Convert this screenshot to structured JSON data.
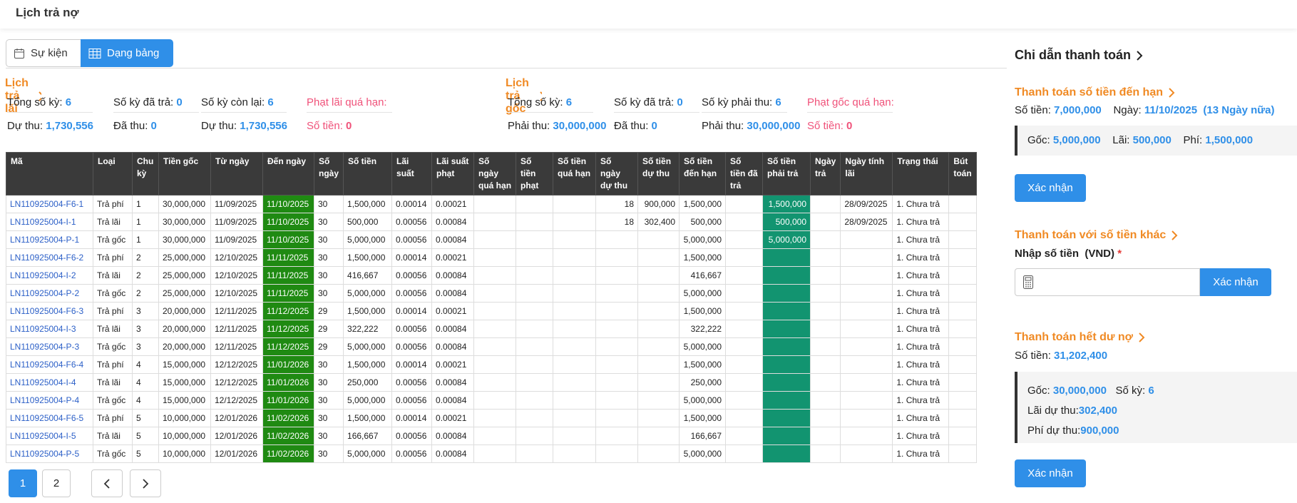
{
  "header": {
    "title": "Lịch trả nợ"
  },
  "tabs": [
    "Sự kiện",
    "Dạng bảng"
  ],
  "interest_schedule": {
    "title": "Lịch trả lãi",
    "stats": [
      [
        {
          "label": "Tổng số kỳ:",
          "value": "6"
        },
        {
          "label": "Số kỳ đã trả:",
          "value": "0"
        },
        {
          "label": "Số kỳ còn lại:",
          "value": "6"
        },
        {
          "label": "Phạt lãi quá hạn:"
        }
      ],
      [
        {
          "label": "Dự thu:",
          "value": "1,730,556"
        },
        {
          "label": "Đã thu:",
          "value": "0"
        },
        {
          "label": "Dự thu:",
          "value": "1,730,556"
        },
        {
          "label": "Số tiền:",
          "value": "0"
        }
      ]
    ]
  },
  "principal_schedule": {
    "title": "Lịch trả gốc",
    "stats": [
      [
        {
          "label": "Tổng số kỳ:",
          "value": "6"
        },
        {
          "label": "Số kỳ đã trả:",
          "value": "0"
        },
        {
          "label": "Số kỳ phải thu:",
          "value": "6"
        },
        {
          "label": "Phạt gốc quá hạn:"
        }
      ],
      [
        {
          "label": "Phải thu:",
          "value": "30,000,000"
        },
        {
          "label": "Đã thu:",
          "value": "0"
        },
        {
          "label": "Phải thu:",
          "value": "30,000,000"
        },
        {
          "label": "Số tiền:",
          "value": "0"
        }
      ]
    ]
  },
  "table": {
    "headers": [
      "Mã",
      "Loại",
      "Chu kỳ",
      "Tiền gốc",
      "Từ ngày",
      "Đến ngày",
      "Số ngày",
      "Số tiền",
      "Lãi suất",
      "Lãi suất phạt",
      "Số ngày quá hạn",
      "Số tiền phạt",
      "Số tiền quá hạn",
      "Số ngày dự thu",
      "Số tiền dự thu",
      "Số tiền đến hạn",
      "Số tiền đã trả",
      "Số tiền phải trả",
      "Ngày trả",
      "Ngày tính lãi",
      "Trạng thái",
      "Bút toán"
    ],
    "rows": [
      [
        "LN110925004-F6-1",
        "Trả phí",
        "1",
        "30,000,000",
        "11/09/2025",
        "11/10/2025",
        "30",
        "1,500,000",
        "0.00014",
        "0.00021",
        null,
        null,
        null,
        "18",
        "900,000",
        "1,500,000",
        null,
        "1,500,000",
        null,
        "28/09/2025",
        "1. Chưa trả",
        null
      ],
      [
        "LN110925004-I-1",
        "Trả lãi",
        "1",
        "30,000,000",
        "11/09/2025",
        "11/10/2025",
        "30",
        "500,000",
        "0.00056",
        "0.00084",
        null,
        null,
        null,
        "18",
        "302,400",
        "500,000",
        null,
        "500,000",
        null,
        "28/09/2025",
        "1. Chưa trả",
        null
      ],
      [
        "LN110925004-P-1",
        "Trả gốc",
        "1",
        "30,000,000",
        "11/09/2025",
        "11/10/2025",
        "30",
        "5,000,000",
        "0.00056",
        "0.00084",
        null,
        null,
        null,
        null,
        null,
        "5,000,000",
        null,
        "5,000,000",
        null,
        null,
        "1. Chưa trả",
        null
      ],
      [
        "LN110925004-F6-2",
        "Trả phí",
        "2",
        "25,000,000",
        "12/10/2025",
        "11/11/2025",
        "30",
        "1,500,000",
        "0.00014",
        "0.00021",
        null,
        null,
        null,
        null,
        null,
        "1,500,000",
        null,
        null,
        null,
        null,
        "1. Chưa trả",
        null
      ],
      [
        "LN110925004-I-2",
        "Trả lãi",
        "2",
        "25,000,000",
        "12/10/2025",
        "11/11/2025",
        "30",
        "416,667",
        "0.00056",
        "0.00084",
        null,
        null,
        null,
        null,
        null,
        "416,667",
        null,
        null,
        null,
        null,
        "1. Chưa trả",
        null
      ],
      [
        "LN110925004-P-2",
        "Trả gốc",
        "2",
        "25,000,000",
        "12/10/2025",
        "11/11/2025",
        "30",
        "5,000,000",
        "0.00056",
        "0.00084",
        null,
        null,
        null,
        null,
        null,
        "5,000,000",
        null,
        null,
        null,
        null,
        "1. Chưa trả",
        null
      ],
      [
        "LN110925004-F6-3",
        "Trả phí",
        "3",
        "20,000,000",
        "12/11/2025",
        "11/12/2025",
        "29",
        "1,500,000",
        "0.00014",
        "0.00021",
        null,
        null,
        null,
        null,
        null,
        "1,500,000",
        null,
        null,
        null,
        null,
        "1. Chưa trả",
        null
      ],
      [
        "LN110925004-I-3",
        "Trả lãi",
        "3",
        "20,000,000",
        "12/11/2025",
        "11/12/2025",
        "29",
        "322,222",
        "0.00056",
        "0.00084",
        null,
        null,
        null,
        null,
        null,
        "322,222",
        null,
        null,
        null,
        null,
        "1. Chưa trả",
        null
      ],
      [
        "LN110925004-P-3",
        "Trả gốc",
        "3",
        "20,000,000",
        "12/11/2025",
        "11/12/2025",
        "29",
        "5,000,000",
        "0.00056",
        "0.00084",
        null,
        null,
        null,
        null,
        null,
        "5,000,000",
        null,
        null,
        null,
        null,
        "1. Chưa trả",
        null
      ],
      [
        "LN110925004-F6-4",
        "Trả phí",
        "4",
        "15,000,000",
        "12/12/2025",
        "11/01/2026",
        "30",
        "1,500,000",
        "0.00014",
        "0.00021",
        null,
        null,
        null,
        null,
        null,
        "1,500,000",
        null,
        null,
        null,
        null,
        "1. Chưa trả",
        null
      ],
      [
        "LN110925004-I-4",
        "Trả lãi",
        "4",
        "15,000,000",
        "12/12/2025",
        "11/01/2026",
        "30",
        "250,000",
        "0.00056",
        "0.00084",
        null,
        null,
        null,
        null,
        null,
        "250,000",
        null,
        null,
        null,
        null,
        "1. Chưa trả",
        null
      ],
      [
        "LN110925004-P-4",
        "Trả gốc",
        "4",
        "15,000,000",
        "12/12/2025",
        "11/01/2026",
        "30",
        "5,000,000",
        "0.00056",
        "0.00084",
        null,
        null,
        null,
        null,
        null,
        "5,000,000",
        null,
        null,
        null,
        null,
        "1. Chưa trả",
        null
      ],
      [
        "LN110925004-F6-5",
        "Trả phí",
        "5",
        "10,000,000",
        "12/01/2026",
        "11/02/2026",
        "30",
        "1,500,000",
        "0.00014",
        "0.00021",
        null,
        null,
        null,
        null,
        null,
        "1,500,000",
        null,
        null,
        null,
        null,
        "1. Chưa trả",
        null
      ],
      [
        "LN110925004-I-5",
        "Trả lãi",
        "5",
        "10,000,000",
        "12/01/2026",
        "11/02/2026",
        "30",
        "166,667",
        "0.00056",
        "0.00084",
        null,
        null,
        null,
        null,
        null,
        "166,667",
        null,
        null,
        null,
        null,
        "1. Chưa trả",
        null
      ],
      [
        "LN110925004-P-5",
        "Trả gốc",
        "5",
        "10,000,000",
        "12/01/2026",
        "11/02/2026",
        "30",
        "5,000,000",
        "0.00056",
        "0.00084",
        null,
        null,
        null,
        null,
        null,
        "5,000,000",
        null,
        null,
        null,
        null,
        "1. Chưa trả",
        null
      ]
    ]
  },
  "pagination": {
    "pages": [
      "1",
      "2"
    ]
  },
  "payment_guide": {
    "title": "Chi dẫn thanh toán",
    "due": {
      "title": "Thanh toán số tiền đến hạn",
      "amount_label": "Số tiền:",
      "amount": "7,000,000",
      "date_label": "Ngày:",
      "date": "11/10/2025",
      "days_left": "(13 Ngày nữa)",
      "principal_label": "Gốc:",
      "principal": "5,000,000",
      "interest_label": "Lãi:",
      "interest": "500,000",
      "fee_label": "Phí:",
      "fee": "1,500,000",
      "button": "Xác nhận"
    },
    "other": {
      "title": "Thanh toán với số tiền khác",
      "input_label": "Nhập số tiền  (VND)",
      "required": "*",
      "button": "Xác nhận"
    },
    "payoff": {
      "title": "Thanh toán hết dư nợ",
      "amount_label": "Số tiền:",
      "amount": "31,202,400",
      "principal_label": "Gốc:",
      "principal": "30,000,000",
      "periods_label": "Số kỳ:",
      "periods": "6",
      "accrued_interest_label": "Lãi dự thu:",
      "accrued_interest": "302,400",
      "accrued_fee_label": "Phí dự thu:",
      "accrued_fee": "900,000",
      "button": "Xác nhận"
    }
  }
}
